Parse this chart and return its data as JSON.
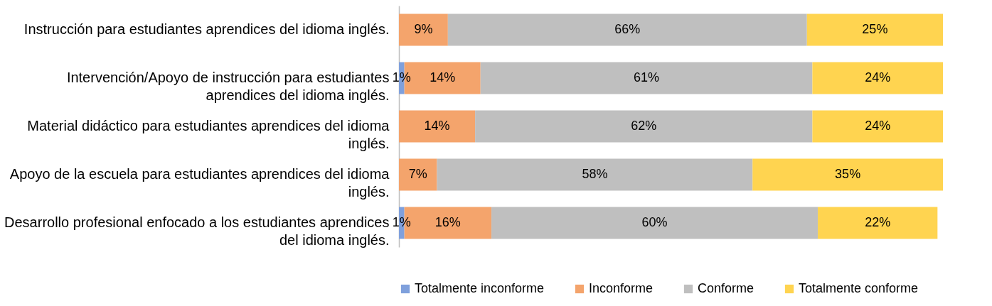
{
  "chart_data": {
    "type": "bar",
    "orientation": "horizontal",
    "stacked": true,
    "categories": [
      "Instrucción para estudiantes aprendices del idioma inglés.",
      "Intervención/Apoyo de instrucción para estudiantes aprendices del idioma inglés.",
      "Material didáctico para estudiantes aprendices del idioma inglés.",
      "Apoyo de la escuela para estudiantes aprendices del idioma inglés.",
      "Desarrollo profesional enfocado a los estudiantes aprendices del idioma inglés."
    ],
    "series": [
      {
        "name": "Totalmente inconforme",
        "color": "#7fa0dc",
        "values": [
          null,
          1,
          null,
          null,
          1
        ],
        "value_labels": [
          null,
          "1%",
          null,
          null,
          "1%"
        ]
      },
      {
        "name": "Inconforme",
        "color": "#f4a46c",
        "values": [
          9,
          14,
          14,
          7,
          16
        ],
        "value_labels": [
          "9%",
          "14%",
          "14%",
          "7%",
          "16%"
        ]
      },
      {
        "name": "Conforme",
        "color": "#bfbfbf",
        "values": [
          66,
          61,
          62,
          58,
          60
        ],
        "value_labels": [
          "66%",
          "61%",
          "62%",
          "58%",
          "60%"
        ]
      },
      {
        "name": "Totalmente conforme",
        "color": "#ffd450",
        "values": [
          25,
          24,
          24,
          35,
          22
        ],
        "value_labels": [
          "25%",
          "24%",
          "24%",
          "35%",
          "22%"
        ]
      }
    ],
    "xlim": [
      0,
      100
    ],
    "tick_labels": "y",
    "legend": "bottom"
  }
}
